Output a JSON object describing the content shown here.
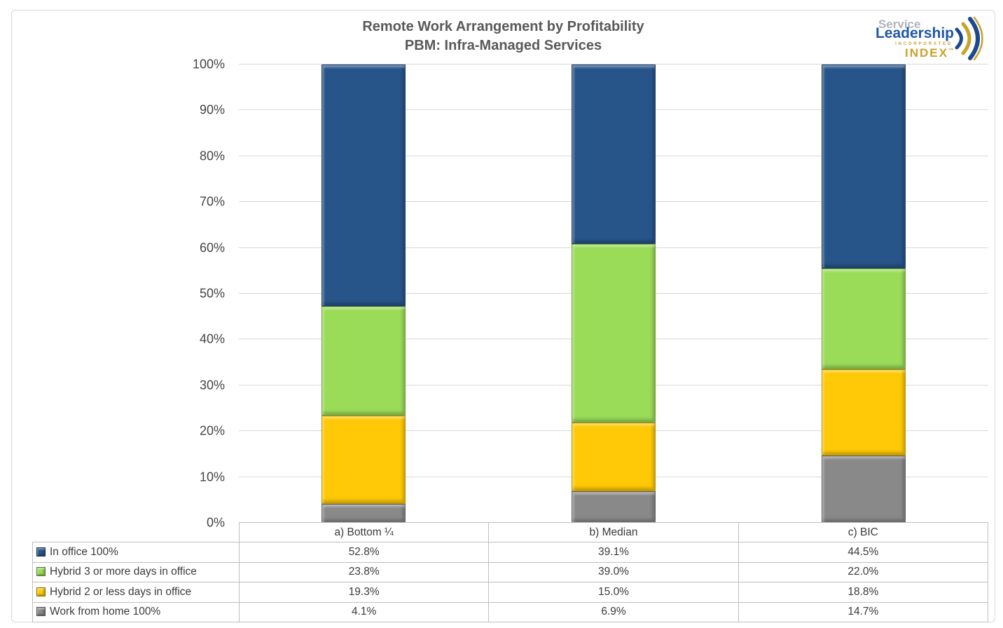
{
  "title": {
    "line1": "Remote Work Arrangement by Profitability",
    "line2": "PBM: Infra-Managed Services"
  },
  "logo": {
    "service": "Service",
    "leadership": "Leadership",
    "incorporated": "INCORPORATED",
    "index": "INDEX",
    "tm": "™",
    "blue": "#1c4890",
    "gold": "#c9a227"
  },
  "chart_data": {
    "type": "bar",
    "subtype": "stacked-column",
    "categories": [
      "a) Bottom ¼",
      "b) Median",
      "c) BIC"
    ],
    "series": [
      {
        "name": "In office 100%",
        "color": "#275489",
        "values": [
          52.8,
          39.1,
          44.5
        ]
      },
      {
        "name": "Hybrid 3 or more days in office",
        "color": "#9adb58",
        "values": [
          23.8,
          39.0,
          22.0
        ]
      },
      {
        "name": "Hybrid 2 or less days in office",
        "color": "#ffc907",
        "values": [
          19.3,
          15.0,
          18.8
        ]
      },
      {
        "name": "Work from home 100%",
        "color": "#898989",
        "values": [
          4.1,
          6.9,
          14.7
        ]
      }
    ],
    "value_suffix": "%",
    "ylabel_ticks": [
      "100%",
      "90%",
      "80%",
      "70%",
      "60%",
      "50%",
      "40%",
      "30%",
      "20%",
      "10%",
      "0%"
    ],
    "ylim": [
      0,
      100
    ],
    "grid": true,
    "legend_position": "table-below"
  }
}
